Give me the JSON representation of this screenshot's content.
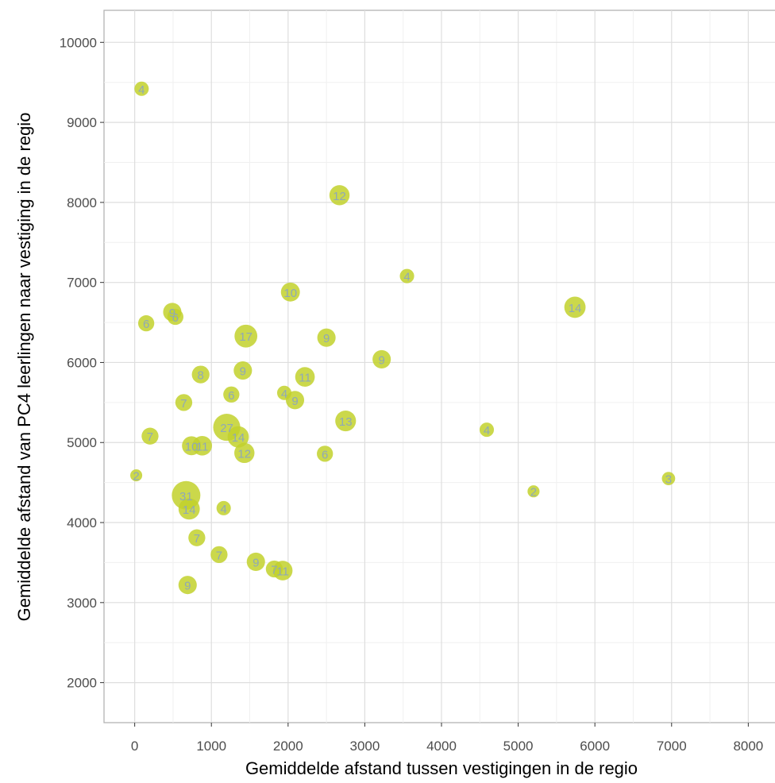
{
  "chart_data": {
    "type": "scatter",
    "title": "",
    "xlabel": "Gemiddelde afstand tussen vestigingen in de regio",
    "ylabel": "Gemiddelde afstand van PC4 leerlingen naar vestiging in de regio",
    "xlim": [
      -400,
      8400
    ],
    "ylim": [
      1500,
      10400
    ],
    "x_ticks": [
      0,
      1000,
      2000,
      3000,
      4000,
      5000,
      6000,
      7000,
      8000
    ],
    "y_ticks": [
      2000,
      3000,
      4000,
      5000,
      6000,
      7000,
      8000,
      9000,
      10000
    ],
    "grid": true,
    "legend": "none",
    "point_color": "#c2d12c",
    "label_color": "#8fa8b8",
    "points": [
      {
        "x": 90,
        "y": 9420,
        "n": 4
      },
      {
        "x": 2670,
        "y": 8090,
        "n": 12
      },
      {
        "x": 3550,
        "y": 7080,
        "n": 4
      },
      {
        "x": 2030,
        "y": 6880,
        "n": 10
      },
      {
        "x": 5740,
        "y": 6690,
        "n": 14
      },
      {
        "x": 150,
        "y": 6490,
        "n": 6
      },
      {
        "x": 490,
        "y": 6630,
        "n": 9
      },
      {
        "x": 530,
        "y": 6570,
        "n": 6
      },
      {
        "x": 1450,
        "y": 6330,
        "n": 17
      },
      {
        "x": 2500,
        "y": 6310,
        "n": 9
      },
      {
        "x": 3220,
        "y": 6040,
        "n": 9
      },
      {
        "x": 1410,
        "y": 5900,
        "n": 9
      },
      {
        "x": 860,
        "y": 5850,
        "n": 8
      },
      {
        "x": 2220,
        "y": 5820,
        "n": 11
      },
      {
        "x": 1260,
        "y": 5600,
        "n": 6
      },
      {
        "x": 1950,
        "y": 5620,
        "n": 4
      },
      {
        "x": 2090,
        "y": 5530,
        "n": 9
      },
      {
        "x": 640,
        "y": 5500,
        "n": 7
      },
      {
        "x": 2750,
        "y": 5270,
        "n": 13
      },
      {
        "x": 1200,
        "y": 5190,
        "n": 27
      },
      {
        "x": 4590,
        "y": 5160,
        "n": 4
      },
      {
        "x": 1350,
        "y": 5070,
        "n": 14
      },
      {
        "x": 200,
        "y": 5080,
        "n": 7
      },
      {
        "x": 740,
        "y": 4960,
        "n": 10
      },
      {
        "x": 880,
        "y": 4960,
        "n": 11
      },
      {
        "x": 1430,
        "y": 4870,
        "n": 12
      },
      {
        "x": 2480,
        "y": 4860,
        "n": 6
      },
      {
        "x": 20,
        "y": 4590,
        "n": 2
      },
      {
        "x": 6960,
        "y": 4550,
        "n": 3
      },
      {
        "x": 5200,
        "y": 4390,
        "n": 2
      },
      {
        "x": 670,
        "y": 4340,
        "n": 31
      },
      {
        "x": 710,
        "y": 4170,
        "n": 14
      },
      {
        "x": 1160,
        "y": 4180,
        "n": 4
      },
      {
        "x": 810,
        "y": 3810,
        "n": 7
      },
      {
        "x": 1100,
        "y": 3600,
        "n": 7
      },
      {
        "x": 1580,
        "y": 3510,
        "n": 9
      },
      {
        "x": 1820,
        "y": 3420,
        "n": 7
      },
      {
        "x": 1930,
        "y": 3400,
        "n": 11
      },
      {
        "x": 690,
        "y": 3220,
        "n": 9
      }
    ]
  }
}
